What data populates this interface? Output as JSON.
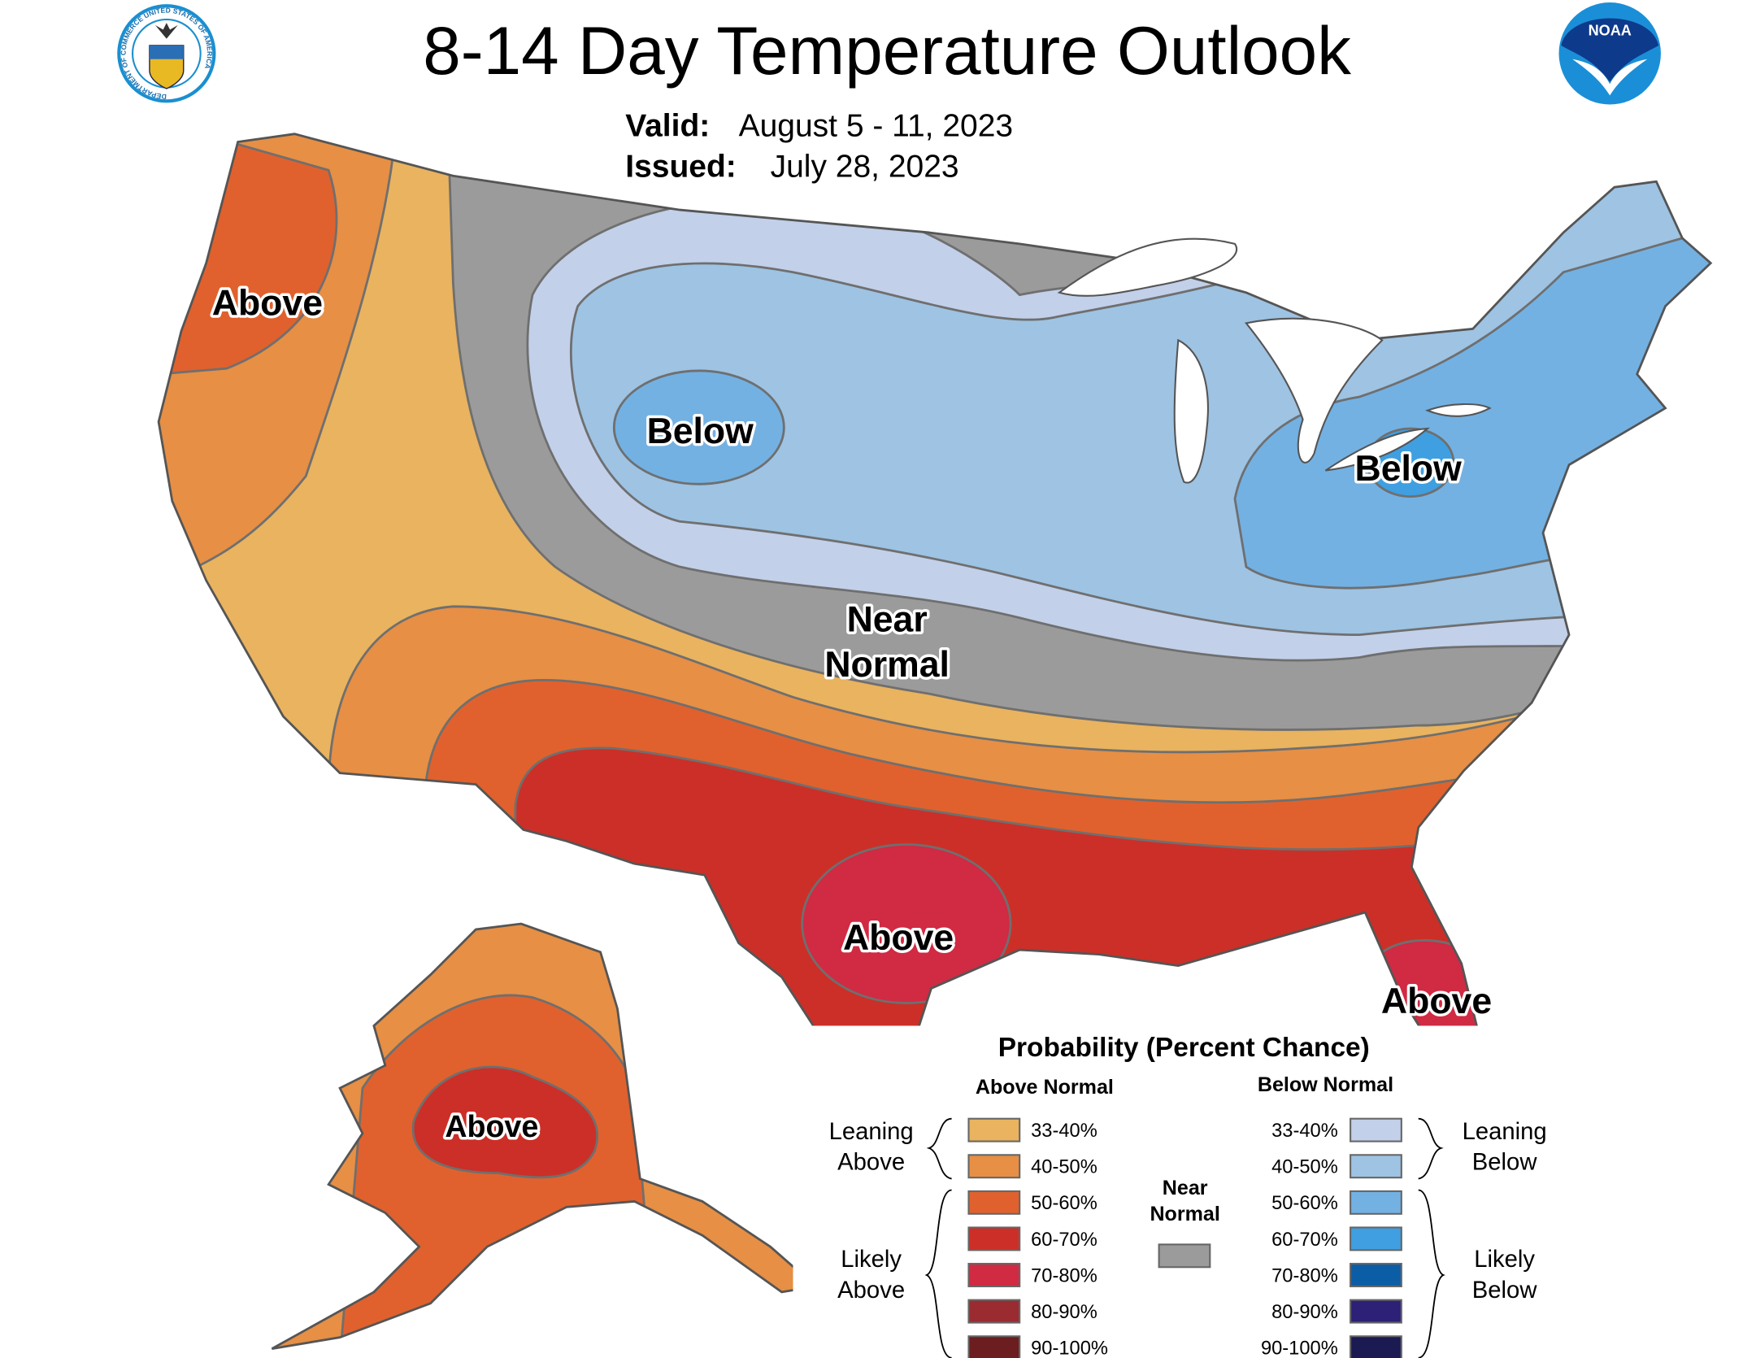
{
  "header": {
    "title": "8-14 Day Temperature Outlook",
    "valid_label": "Valid:",
    "valid_value": "August 5 - 11, 2023",
    "issued_label": "Issued:",
    "issued_value": "July 28, 2023",
    "noaa_logo_text": "NOAA",
    "doc_seal_text": "DEPARTMENT OF COMMERCE UNITED STATES OF AMERICA"
  },
  "map": {
    "labels": {
      "above_pnw": "Above",
      "below_rockies": "Below",
      "below_ohio": "Below",
      "near_normal_1": "Near",
      "near_normal_2": "Normal",
      "above_texas": "Above",
      "above_florida": "Above",
      "above_alaska": "Above"
    }
  },
  "legend": {
    "title": "Probability (Percent Chance)",
    "above_header": "Above Normal",
    "below_header": "Below Normal",
    "leaning_above": [
      "Leaning",
      "Above"
    ],
    "likely_above": [
      "Likely",
      "Above"
    ],
    "leaning_below": [
      "Leaning",
      "Below"
    ],
    "likely_below": [
      "Likely",
      "Below"
    ],
    "near_normal": [
      "Near",
      "Normal"
    ],
    "near_normal_color": "#9b9b9b",
    "above": [
      {
        "range": "33-40%",
        "color": "#e9b35f"
      },
      {
        "range": "40-50%",
        "color": "#e68f45"
      },
      {
        "range": "50-60%",
        "color": "#e0612d"
      },
      {
        "range": "60-70%",
        "color": "#cc2f27"
      },
      {
        "range": "70-80%",
        "color": "#d12a43"
      },
      {
        "range": "80-90%",
        "color": "#9a2b31"
      },
      {
        "range": "90-100%",
        "color": "#6b1d1f"
      }
    ],
    "below": [
      {
        "range": "33-40%",
        "color": "#c2d0e9"
      },
      {
        "range": "40-50%",
        "color": "#9ec3e3"
      },
      {
        "range": "50-60%",
        "color": "#73b1e3"
      },
      {
        "range": "60-70%",
        "color": "#3f9fe0"
      },
      {
        "range": "70-80%",
        "color": "#0b5ea6"
      },
      {
        "range": "80-90%",
        "color": "#2c2177"
      },
      {
        "range": "90-100%",
        "color": "#1c1a52"
      }
    ]
  }
}
